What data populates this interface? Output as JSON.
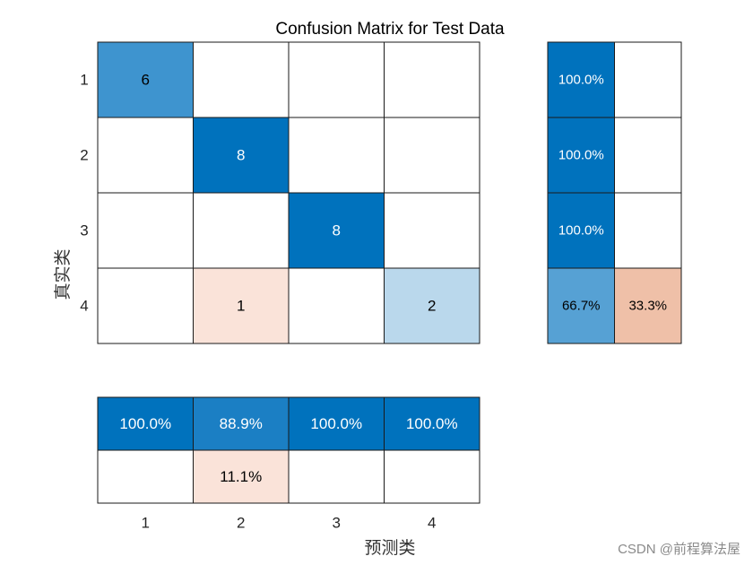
{
  "chart_data": {
    "type": "heatmap",
    "title": "Confusion Matrix for Test Data",
    "xlabel": "预测类",
    "ylabel": "真实类",
    "classes": [
      "1",
      "2",
      "3",
      "4"
    ],
    "matrix": [
      [
        6,
        0,
        0,
        0
      ],
      [
        0,
        8,
        0,
        0
      ],
      [
        0,
        0,
        8,
        0
      ],
      [
        0,
        1,
        0,
        2
      ]
    ],
    "row_summary": [
      [
        "100.0%",
        ""
      ],
      [
        "100.0%",
        ""
      ],
      [
        "100.0%",
        ""
      ],
      [
        "66.7%",
        "33.3%"
      ]
    ],
    "column_summary": [
      [
        "100.0%",
        "88.9%",
        "100.0%",
        "100.0%"
      ],
      [
        "",
        "11.1%",
        "",
        ""
      ]
    ],
    "colors": {
      "correct_strong": "#0072BD",
      "correct_mid": "#3E94CF",
      "correct_light": "#BAD8EC",
      "incorrect_light": "#FAE3D9",
      "incorrect_mid": "#EFC0A8",
      "summary_mid": "#56A1D4",
      "summary_88": "#1B7FC4"
    }
  },
  "watermark": "CSDN @前程算法屋"
}
